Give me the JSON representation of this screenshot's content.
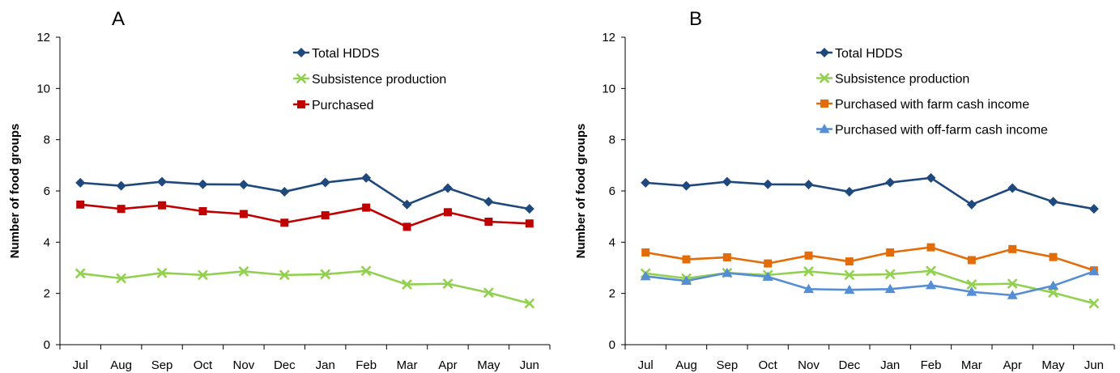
{
  "chart_data": [
    {
      "type": "line",
      "title": "A",
      "ylabel": "Number of food groups",
      "xlabel": "",
      "categories": [
        "Jul",
        "Aug",
        "Sep",
        "Oct",
        "Nov",
        "Dec",
        "Jan",
        "Feb",
        "Mar",
        "Apr",
        "May",
        "Jun"
      ],
      "ylim": [
        0,
        12
      ],
      "yticks": [
        0,
        2,
        4,
        6,
        8,
        10,
        12
      ],
      "legend_position": "top-center",
      "series": [
        {
          "name": "Total HDDS",
          "color": "#1F497D",
          "marker": "diamond",
          "values": [
            6.32,
            6.2,
            6.36,
            6.26,
            6.25,
            5.97,
            6.33,
            6.51,
            5.47,
            6.11,
            5.58,
            5.3
          ]
        },
        {
          "name": "Subsistence production",
          "color": "#92D050",
          "marker": "x",
          "values": [
            2.78,
            2.59,
            2.8,
            2.72,
            2.86,
            2.72,
            2.75,
            2.88,
            2.35,
            2.38,
            2.03,
            1.61
          ]
        },
        {
          "name": "Purchased",
          "color": "#C00000",
          "marker": "square",
          "values": [
            5.47,
            5.3,
            5.44,
            5.21,
            5.1,
            4.76,
            5.05,
            5.35,
            4.6,
            5.17,
            4.8,
            4.73
          ]
        }
      ]
    },
    {
      "type": "line",
      "title": "B",
      "ylabel": "Number of food groups",
      "xlabel": "",
      "categories": [
        "Jul",
        "Aug",
        "Sep",
        "Oct",
        "Nov",
        "Dec",
        "Jan",
        "Feb",
        "Mar",
        "Apr",
        "May",
        "Jun"
      ],
      "ylim": [
        0,
        12
      ],
      "yticks": [
        0,
        2,
        4,
        6,
        8,
        10,
        12
      ],
      "legend_position": "top-center",
      "series": [
        {
          "name": "Total HDDS",
          "color": "#1F497D",
          "marker": "diamond",
          "values": [
            6.32,
            6.2,
            6.36,
            6.26,
            6.25,
            5.97,
            6.33,
            6.51,
            5.47,
            6.11,
            5.58,
            5.3
          ]
        },
        {
          "name": "Subsistence production",
          "color": "#92D050",
          "marker": "x",
          "values": [
            2.78,
            2.59,
            2.8,
            2.72,
            2.86,
            2.72,
            2.75,
            2.88,
            2.35,
            2.38,
            2.03,
            1.61
          ]
        },
        {
          "name": "Purchased with farm cash income",
          "color": "#E36C09",
          "marker": "square",
          "values": [
            3.6,
            3.33,
            3.41,
            3.17,
            3.48,
            3.25,
            3.6,
            3.8,
            3.3,
            3.73,
            3.42,
            2.9
          ]
        },
        {
          "name": "Purchased with off-farm cash income",
          "color": "#558ED5",
          "marker": "triangle",
          "values": [
            2.67,
            2.49,
            2.8,
            2.65,
            2.17,
            2.14,
            2.17,
            2.32,
            2.06,
            1.93,
            2.3,
            2.86
          ]
        }
      ]
    }
  ]
}
